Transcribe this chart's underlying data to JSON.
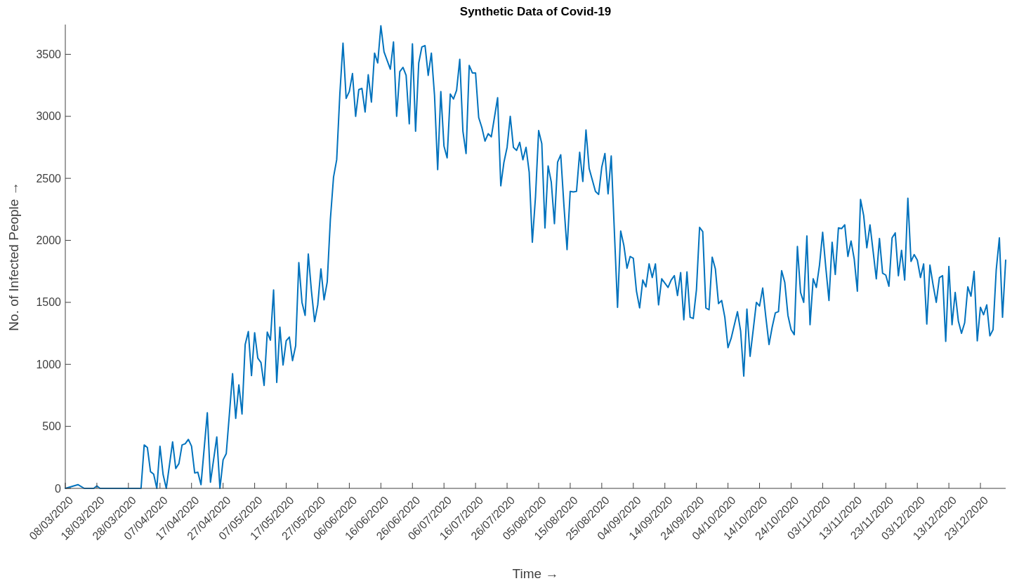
{
  "chart_data": {
    "type": "line",
    "title": "Synthetic Data of Covid-19",
    "xlabel": "Time →",
    "ylabel": "No. of Infected People →",
    "xlim": [
      "2020-03-08",
      "2020-12-31"
    ],
    "ylim": [
      0,
      3740
    ],
    "yticks": [
      0,
      500,
      1000,
      1500,
      2000,
      2500,
      3000,
      3500
    ],
    "xticks": [
      {
        "value": "2020-03-08",
        "label": "08/03/2020"
      },
      {
        "value": "2020-03-18",
        "label": "18/03/2020"
      },
      {
        "value": "2020-03-28",
        "label": "28/03/2020"
      },
      {
        "value": "2020-04-07",
        "label": "07/04/2020"
      },
      {
        "value": "2020-04-17",
        "label": "17/04/2020"
      },
      {
        "value": "2020-04-27",
        "label": "27/04/2020"
      },
      {
        "value": "2020-05-07",
        "label": "07/05/2020"
      },
      {
        "value": "2020-05-17",
        "label": "17/05/2020"
      },
      {
        "value": "2020-05-27",
        "label": "27/05/2020"
      },
      {
        "value": "2020-06-06",
        "label": "06/06/2020"
      },
      {
        "value": "2020-06-16",
        "label": "16/06/2020"
      },
      {
        "value": "2020-06-26",
        "label": "26/06/2020"
      },
      {
        "value": "2020-07-06",
        "label": "06/07/2020"
      },
      {
        "value": "2020-07-16",
        "label": "16/07/2020"
      },
      {
        "value": "2020-07-26",
        "label": "26/07/2020"
      },
      {
        "value": "2020-08-05",
        "label": "05/08/2020"
      },
      {
        "value": "2020-08-15",
        "label": "15/08/2020"
      },
      {
        "value": "2020-08-25",
        "label": "25/08/2020"
      },
      {
        "value": "2020-09-04",
        "label": "04/09/2020"
      },
      {
        "value": "2020-09-14",
        "label": "14/09/2020"
      },
      {
        "value": "2020-09-24",
        "label": "24/09/2020"
      },
      {
        "value": "2020-10-04",
        "label": "04/10/2020"
      },
      {
        "value": "2020-10-14",
        "label": "14/10/2020"
      },
      {
        "value": "2020-10-24",
        "label": "24/10/2020"
      },
      {
        "value": "2020-11-03",
        "label": "03/11/2020"
      },
      {
        "value": "2020-11-13",
        "label": "13/11/2020"
      },
      {
        "value": "2020-11-23",
        "label": "23/11/2020"
      },
      {
        "value": "2020-12-03",
        "label": "03/12/2020"
      },
      {
        "value": "2020-12-13",
        "label": "13/12/2020"
      },
      {
        "value": "2020-12-23",
        "label": "23/12/2020"
      }
    ],
    "grid": false,
    "marker": "none",
    "line_style": "solid",
    "series": [
      {
        "color": "#0072bd",
        "x": [
          "2020-03-08",
          "2020-03-12",
          "2020-03-14",
          "2020-03-17",
          "2020-03-18",
          "2020-03-19",
          "2020-04-01",
          "2020-04-02",
          "2020-04-03",
          "2020-04-04",
          "2020-04-05",
          "2020-04-06",
          "2020-04-07",
          "2020-04-08",
          "2020-04-09",
          "2020-04-11",
          "2020-04-12",
          "2020-04-13",
          "2020-04-14",
          "2020-04-15",
          "2020-04-16",
          "2020-04-17",
          "2020-04-18",
          "2020-04-19",
          "2020-04-20",
          "2020-04-22",
          "2020-04-23",
          "2020-04-25",
          "2020-04-26",
          "2020-04-27",
          "2020-04-28",
          "2020-04-29",
          "2020-04-30",
          "2020-05-01",
          "2020-05-02",
          "2020-05-03",
          "2020-05-04",
          "2020-05-05",
          "2020-05-06",
          "2020-05-07",
          "2020-05-08",
          "2020-05-09",
          "2020-05-10",
          "2020-05-11",
          "2020-05-12",
          "2020-05-13",
          "2020-05-14",
          "2020-05-15",
          "2020-05-16",
          "2020-05-17",
          "2020-05-18",
          "2020-05-19",
          "2020-05-20",
          "2020-05-21",
          "2020-05-22",
          "2020-05-23",
          "2020-05-24",
          "2020-05-25",
          "2020-05-26",
          "2020-05-27",
          "2020-05-28",
          "2020-05-29",
          "2020-05-30",
          "2020-05-31",
          "2020-06-01",
          "2020-06-02",
          "2020-06-03",
          "2020-06-04",
          "2020-06-05",
          "2020-06-06",
          "2020-06-07",
          "2020-06-08",
          "2020-06-09",
          "2020-06-10",
          "2020-06-11",
          "2020-06-12",
          "2020-06-13",
          "2020-06-14",
          "2020-06-15",
          "2020-06-16",
          "2020-06-17",
          "2020-06-19",
          "2020-06-20",
          "2020-06-21",
          "2020-06-22",
          "2020-06-23",
          "2020-06-24",
          "2020-06-25",
          "2020-06-26",
          "2020-06-27",
          "2020-06-28",
          "2020-06-29",
          "2020-06-30",
          "2020-07-01",
          "2020-07-02",
          "2020-07-03",
          "2020-07-04",
          "2020-07-05",
          "2020-07-06",
          "2020-07-07",
          "2020-07-08",
          "2020-07-09",
          "2020-07-10",
          "2020-07-11",
          "2020-07-12",
          "2020-07-13",
          "2020-07-14",
          "2020-07-15",
          "2020-07-16",
          "2020-07-17",
          "2020-07-18",
          "2020-07-19",
          "2020-07-20",
          "2020-07-21",
          "2020-07-23",
          "2020-07-24",
          "2020-07-25",
          "2020-07-26",
          "2020-07-27",
          "2020-07-28",
          "2020-07-29",
          "2020-07-30",
          "2020-07-31",
          "2020-08-01",
          "2020-08-02",
          "2020-08-03",
          "2020-08-04",
          "2020-08-05",
          "2020-08-06",
          "2020-08-07",
          "2020-08-08",
          "2020-08-09",
          "2020-08-10",
          "2020-08-11",
          "2020-08-12",
          "2020-08-13",
          "2020-08-14",
          "2020-08-15",
          "2020-08-16",
          "2020-08-17",
          "2020-08-18",
          "2020-08-19",
          "2020-08-20",
          "2020-08-21",
          "2020-08-23",
          "2020-08-24",
          "2020-08-25",
          "2020-08-26",
          "2020-08-27",
          "2020-08-28",
          "2020-08-30",
          "2020-08-31",
          "2020-09-01",
          "2020-09-02",
          "2020-09-03",
          "2020-09-04",
          "2020-09-05",
          "2020-09-06",
          "2020-09-07",
          "2020-09-08",
          "2020-09-09",
          "2020-09-10",
          "2020-09-11",
          "2020-09-12",
          "2020-09-13",
          "2020-09-15",
          "2020-09-16",
          "2020-09-17",
          "2020-09-18",
          "2020-09-19",
          "2020-09-20",
          "2020-09-21",
          "2020-09-22",
          "2020-09-23",
          "2020-09-24",
          "2020-09-25",
          "2020-09-26",
          "2020-09-27",
          "2020-09-28",
          "2020-09-29",
          "2020-09-30",
          "2020-10-01",
          "2020-10-02",
          "2020-10-03",
          "2020-10-04",
          "2020-10-05",
          "2020-10-07",
          "2020-10-08",
          "2020-10-09",
          "2020-10-10",
          "2020-10-11",
          "2020-10-12",
          "2020-10-13",
          "2020-10-14",
          "2020-10-15",
          "2020-10-16",
          "2020-10-17",
          "2020-10-18",
          "2020-10-19",
          "2020-10-20",
          "2020-10-21",
          "2020-10-22",
          "2020-10-23",
          "2020-10-24",
          "2020-10-25",
          "2020-10-26",
          "2020-10-27",
          "2020-10-28",
          "2020-10-29",
          "2020-10-30",
          "2020-10-31",
          "2020-11-01",
          "2020-11-02",
          "2020-11-03",
          "2020-11-04",
          "2020-11-05",
          "2020-11-06",
          "2020-11-07",
          "2020-11-08",
          "2020-11-09",
          "2020-11-10",
          "2020-11-11",
          "2020-11-12",
          "2020-11-13",
          "2020-11-14",
          "2020-11-15",
          "2020-11-16",
          "2020-11-17",
          "2020-11-18",
          "2020-11-19",
          "2020-11-20",
          "2020-11-21",
          "2020-11-22",
          "2020-11-23",
          "2020-11-24",
          "2020-11-25",
          "2020-11-26",
          "2020-11-27",
          "2020-11-28",
          "2020-11-29",
          "2020-11-30",
          "2020-12-01",
          "2020-12-02",
          "2020-12-03",
          "2020-12-04",
          "2020-12-05",
          "2020-12-06",
          "2020-12-07",
          "2020-12-08",
          "2020-12-09",
          "2020-12-10",
          "2020-12-11",
          "2020-12-12",
          "2020-12-13",
          "2020-12-14",
          "2020-12-15",
          "2020-12-16",
          "2020-12-17",
          "2020-12-18",
          "2020-12-19",
          "2020-12-20",
          "2020-12-21",
          "2020-12-22",
          "2020-12-23",
          "2020-12-24",
          "2020-12-25",
          "2020-12-26",
          "2020-12-27",
          "2020-12-28",
          "2020-12-29",
          "2020-12-30",
          "2020-12-31"
        ],
        "values": [
          0,
          30,
          0,
          0,
          20,
          0,
          0,
          350,
          330,
          135,
          115,
          0,
          340,
          110,
          0,
          375,
          160,
          200,
          350,
          360,
          395,
          340,
          125,
          130,
          30,
          610,
          50,
          415,
          0,
          230,
          280,
          600,
          925,
          565,
          835,
          600,
          1160,
          1265,
          910,
          1255,
          1050,
          1015,
          830,
          1260,
          1195,
          1600,
          855,
          1300,
          995,
          1190,
          1220,
          1030,
          1150,
          1820,
          1500,
          1395,
          1890,
          1590,
          1345,
          1480,
          1770,
          1520,
          1665,
          2170,
          2510,
          2650,
          3180,
          3590,
          3145,
          3200,
          3345,
          3000,
          3215,
          3225,
          3035,
          3335,
          3115,
          3510,
          3430,
          3730,
          3520,
          3380,
          3600,
          3000,
          3360,
          3395,
          3330,
          2940,
          3585,
          2880,
          3430,
          3560,
          3570,
          3330,
          3510,
          3170,
          2570,
          3200,
          2760,
          2665,
          3180,
          3140,
          3210,
          3460,
          2880,
          2700,
          3410,
          3350,
          3350,
          2990,
          2910,
          2800,
          2860,
          2835,
          3150,
          2440,
          2630,
          2750,
          3000,
          2750,
          2725,
          2790,
          2650,
          2750,
          2550,
          1985,
          2350,
          2885,
          2780,
          2100,
          2600,
          2470,
          2135,
          2630,
          2690,
          2285,
          1925,
          2395,
          2390,
          2395,
          2710,
          2475,
          2890,
          2580,
          2395,
          2370,
          2590,
          2700,
          2375,
          2680,
          1460,
          2075,
          1960,
          1775,
          1870,
          1855,
          1590,
          1455,
          1680,
          1625,
          1810,
          1700,
          1810,
          1480,
          1690,
          1620,
          1680,
          1715,
          1555,
          1740,
          1360,
          1745,
          1380,
          1370,
          1600,
          2105,
          2070,
          1455,
          1440,
          1865,
          1770,
          1490,
          1515,
          1380,
          1135,
          1210,
          1425,
          1270,
          905,
          1445,
          1065,
          1280,
          1500,
          1470,
          1615,
          1380,
          1160,
          1300,
          1415,
          1425,
          1755,
          1660,
          1395,
          1280,
          1240,
          1950,
          1580,
          1500,
          2035,
          1320,
          1690,
          1620,
          1800,
          2065,
          1780,
          1515,
          1985,
          1725,
          2100,
          2095,
          2125,
          1870,
          1995,
          1850,
          1590,
          2330,
          2200,
          1940,
          2125,
          1910,
          1690,
          2015,
          1735,
          1720,
          1630,
          2020,
          2060,
          1715,
          1920,
          1680,
          2340,
          1830,
          1885,
          1840,
          1700,
          1810,
          1325,
          1800,
          1640,
          1500,
          1700,
          1715,
          1185,
          1790,
          1320,
          1580,
          1350,
          1250,
          1335,
          1625,
          1550,
          1750,
          1190,
          1460,
          1400,
          1480,
          1230,
          1280,
          1760,
          2020,
          1380,
          1840
        ]
      }
    ]
  }
}
